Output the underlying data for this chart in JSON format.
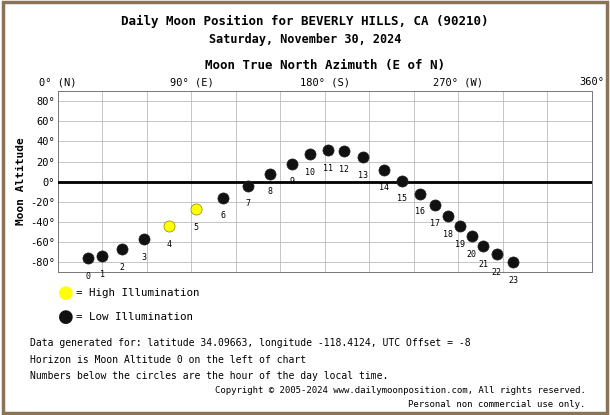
{
  "title1": "Daily Moon Position for BEVERLY HILLS, CA (90210)",
  "title2": "Saturday, November 30, 2024",
  "xlabel": "Moon True North Azimuth (E of N)",
  "ylabel": "Moon Altitude",
  "footer1": "Data generated for: latitude 34.09663, longitude -118.4124, UTC Offset = -8",
  "footer2": "Horizon is Moon Altitude 0 on the left of chart",
  "footer3": "Numbers below the circles are the hour of the day local time.",
  "copyright1": "Copyright © 2005-2024 www.dailymoonposition.com, All rights reserved.",
  "copyright2": "Personal non commercial use only.",
  "hours": [
    0,
    1,
    2,
    3,
    4,
    5,
    6,
    7,
    8,
    9,
    10,
    11,
    12,
    13,
    14,
    15,
    16,
    17,
    18,
    19,
    20,
    21,
    22,
    23
  ],
  "azimuth": [
    20,
    30,
    43,
    58,
    75,
    93,
    111,
    128,
    143,
    158,
    170,
    182,
    193,
    206,
    220,
    232,
    244,
    254,
    263,
    271,
    279,
    287,
    296,
    307
  ],
  "altitude": [
    -76,
    -74,
    -67,
    -57,
    -44,
    -27,
    -16,
    -4,
    8,
    18,
    27,
    31,
    30,
    24,
    12,
    1,
    -12,
    -23,
    -34,
    -44,
    -54,
    -64,
    -72,
    -80
  ],
  "high_illumination": [
    false,
    false,
    false,
    false,
    true,
    true,
    false,
    false,
    false,
    false,
    false,
    false,
    false,
    false,
    false,
    false,
    false,
    false,
    false,
    false,
    false,
    false,
    false,
    false
  ],
  "xlim": [
    0,
    360
  ],
  "ylim": [
    -90,
    90
  ],
  "xticks": [
    0,
    90,
    180,
    270,
    360
  ],
  "xticklabels": [
    "0° (N)",
    "90° (E)",
    "180° (S)",
    "270° (W)",
    "360°"
  ],
  "yticks": [
    -80,
    -60,
    -40,
    -20,
    0,
    20,
    40,
    60,
    80
  ],
  "yticklabels": [
    "-80°",
    "-60°",
    "-40°",
    "-20°",
    "0°",
    "20°",
    "40°",
    "60°",
    "80°"
  ],
  "bg_color": "#ffffff",
  "grid_color": "#bbbbbb",
  "high_color": "#ffff00",
  "low_color": "#111111",
  "horizon_color": "#000000",
  "border_color": "#8B7355"
}
